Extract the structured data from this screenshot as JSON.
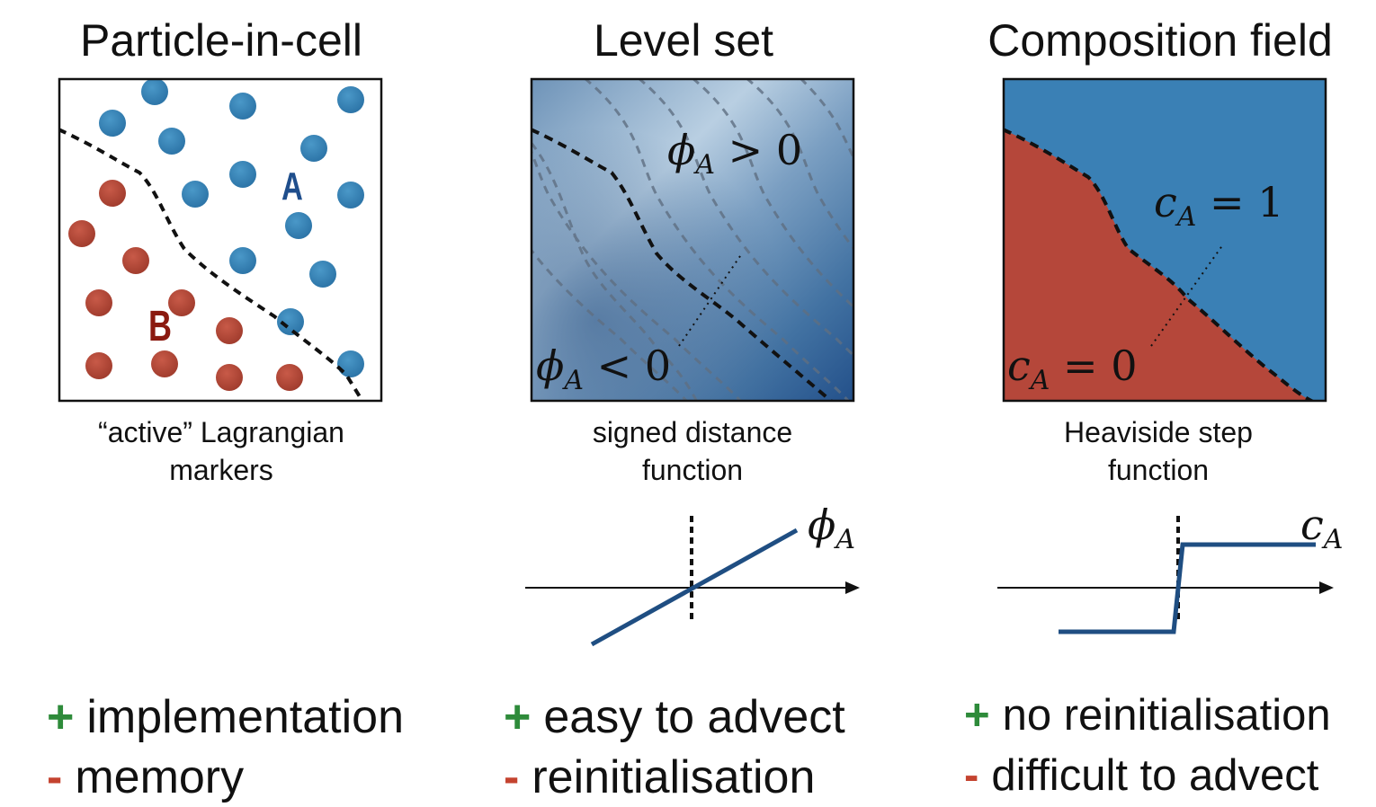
{
  "panels": [
    {
      "title": "Particle-in-cell",
      "caption_line1": "“active” Lagrangian",
      "caption_line2": "markers",
      "label_a": "A",
      "label_b": "B",
      "pro": "implementation",
      "con": "memory"
    },
    {
      "title": "Level set",
      "caption_line1": "signed distance",
      "caption_line2": "function",
      "phi_pos": {
        "sym": "ϕ",
        "sub": "A",
        "rel": " > 0"
      },
      "phi_neg": {
        "sym": "ϕ",
        "sub": "A",
        "rel": " < 0"
      },
      "plot_label": {
        "sym": "ϕ",
        "sub": "A"
      },
      "pro": "easy to advect",
      "con": "reinitialisation"
    },
    {
      "title": "Composition field",
      "caption_line1": "Heaviside step",
      "caption_line2": "function",
      "c_one": {
        "sym": "c",
        "sub": "A",
        "rel": " = 1"
      },
      "c_zero": {
        "sym": "c",
        "sub": "A",
        "rel": " = 0"
      },
      "plot_label": {
        "sym": "c",
        "sub": "A"
      },
      "pro": "no reinitialisation",
      "con": "difficult to advect"
    }
  ],
  "signs": {
    "plus": "+",
    "minus": "-"
  },
  "colors": {
    "blue_marker": "#3a86b8",
    "red_marker": "#b84a3a",
    "label_a": "#1f4e8c",
    "label_b": "#8b1a10",
    "field_blue": "#3a80b5",
    "field_red": "#b5473a",
    "plot_line": "#1f4e82",
    "plus": "#2e8b3a",
    "minus": "#c4432f"
  },
  "icons": [
    "dashed-interface",
    "arrow-axis"
  ]
}
